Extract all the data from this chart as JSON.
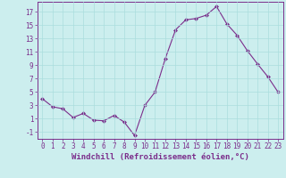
{
  "x_vals": [
    0,
    1,
    2,
    3,
    4,
    5,
    6,
    7,
    8,
    9,
    10,
    11,
    12,
    13,
    14,
    15,
    16,
    17,
    18,
    19,
    20,
    21,
    22,
    23
  ],
  "y_vals": [
    4.0,
    2.8,
    2.5,
    1.2,
    1.8,
    0.8,
    0.7,
    1.5,
    0.5,
    -1.5,
    3.0,
    5.0,
    10.0,
    14.3,
    15.8,
    16.0,
    16.5,
    17.8,
    15.2,
    13.5,
    11.2,
    9.2,
    7.3,
    5.0
  ],
  "xlim": [
    -0.5,
    23.5
  ],
  "ylim": [
    -2,
    18.5
  ],
  "yticks": [
    -1,
    1,
    3,
    5,
    7,
    9,
    11,
    13,
    15,
    17
  ],
  "xticks": [
    0,
    1,
    2,
    3,
    4,
    5,
    6,
    7,
    8,
    9,
    10,
    11,
    12,
    13,
    14,
    15,
    16,
    17,
    18,
    19,
    20,
    21,
    22,
    23
  ],
  "xlabel": "Windchill (Refroidissement éolien,°C)",
  "line_color": "#7B2D8B",
  "marker": "D",
  "marker_size": 2,
  "bg_color": "#cceeee",
  "grid_color": "#aadddd",
  "tick_label_fontsize": 5.5,
  "xlabel_fontsize": 6.5
}
